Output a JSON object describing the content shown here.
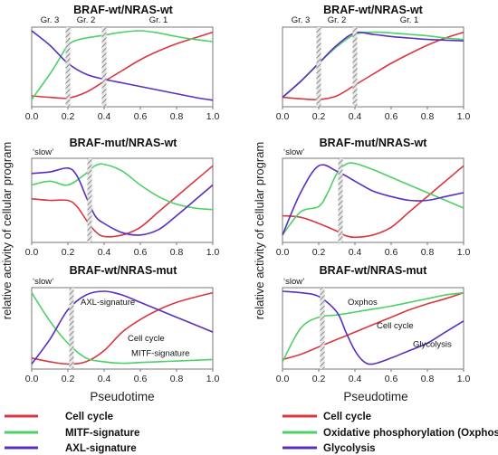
{
  "colors": {
    "cell_cycle": "#d9373f",
    "mitf_oxphos": "#4dd066",
    "axl_glycolysis": "#5a2fbf"
  },
  "ylabel": "relative activity of cellular program",
  "xlabel": "Pseudotime",
  "legends": [
    {
      "items": [
        {
          "label": "Cell cycle",
          "color": "#d9373f"
        },
        {
          "label": "MITF-signature",
          "color": "#4dd066"
        },
        {
          "label": "AXL-signature",
          "color": "#5a2fbf"
        }
      ]
    },
    {
      "items": [
        {
          "label": "Cell cycle",
          "color": "#d9373f"
        },
        {
          "label": "Oxidative phosphorylation (Oxphos)",
          "color": "#4dd066"
        },
        {
          "label": "Glycolysis",
          "color": "#5a2fbf"
        }
      ]
    }
  ],
  "chart_data": [
    {
      "type": "line",
      "title": "BRAF-wt/NRAS-wt",
      "xlabel": "",
      "ylabel": "",
      "xlim": [
        0,
        1
      ],
      "ylim": [
        0,
        1
      ],
      "x_ticks": [
        "0.0",
        "0.2",
        "0.4",
        "0.6",
        "0.8",
        "1.0"
      ],
      "breaks": [
        0.2,
        0.4
      ],
      "groups": [
        "Gr. 3",
        "Gr. 2",
        "Gr. 1"
      ],
      "tag": "",
      "annotations": [],
      "series": [
        {
          "color": "#d9373f",
          "x": [
            0,
            0.1,
            0.2,
            0.3,
            0.4,
            0.5,
            0.6,
            0.7,
            0.8,
            0.9,
            1.0
          ],
          "y": [
            0.1,
            0.08,
            0.07,
            0.15,
            0.3,
            0.45,
            0.6,
            0.72,
            0.82,
            0.9,
            0.98
          ]
        },
        {
          "color": "#4dd066",
          "x": [
            0,
            0.1,
            0.15,
            0.2,
            0.25,
            0.3,
            0.4,
            0.5,
            0.6,
            0.7,
            0.8,
            0.9,
            1.0
          ],
          "y": [
            0.05,
            0.4,
            0.6,
            0.8,
            0.87,
            0.9,
            0.94,
            0.98,
            1.0,
            0.97,
            0.92,
            0.88,
            0.85
          ]
        },
        {
          "color": "#5a2fbf",
          "x": [
            0,
            0.1,
            0.2,
            0.3,
            0.4,
            0.5,
            0.6,
            0.7,
            0.8,
            0.9,
            1.0
          ],
          "y": [
            1.0,
            0.8,
            0.55,
            0.4,
            0.33,
            0.28,
            0.23,
            0.18,
            0.13,
            0.08,
            0.04
          ]
        }
      ]
    },
    {
      "type": "line",
      "title": "BRAF-wt/NRAS-wt",
      "xlabel": "",
      "ylabel": "",
      "xlim": [
        0,
        1
      ],
      "ylim": [
        0,
        1
      ],
      "x_ticks": [
        "0.0",
        "0.2",
        "0.4",
        "0.6",
        "0.8",
        "1.0"
      ],
      "breaks": [
        0.2,
        0.4
      ],
      "groups": [
        "Gr. 3",
        "Gr. 2",
        "Gr. 1"
      ],
      "tag": "",
      "annotations": [],
      "series": [
        {
          "color": "#d9373f",
          "x": [
            0,
            0.1,
            0.2,
            0.3,
            0.4,
            0.5,
            0.6,
            0.7,
            0.8,
            0.9,
            1.0
          ],
          "y": [
            0.08,
            0.06,
            0.05,
            0.1,
            0.25,
            0.4,
            0.55,
            0.68,
            0.8,
            0.9,
            0.98
          ]
        },
        {
          "color": "#4dd066",
          "x": [
            0,
            0.1,
            0.2,
            0.3,
            0.4,
            0.5,
            0.6,
            0.7,
            0.8,
            0.9,
            1.0
          ],
          "y": [
            0.08,
            0.3,
            0.55,
            0.78,
            0.95,
            0.98,
            0.97,
            0.95,
            0.93,
            0.9,
            0.88
          ]
        },
        {
          "color": "#5a2fbf",
          "x": [
            0,
            0.1,
            0.2,
            0.3,
            0.4,
            0.5,
            0.6,
            0.7,
            0.8,
            0.9,
            1.0
          ],
          "y": [
            0.08,
            0.3,
            0.55,
            0.8,
            0.97,
            0.95,
            0.92,
            0.9,
            0.88,
            0.87,
            0.86
          ]
        }
      ]
    },
    {
      "type": "line",
      "title": "BRAF-mut/NRAS-wt",
      "xlabel": "",
      "ylabel": "",
      "xlim": [
        0,
        1
      ],
      "ylim": [
        0,
        1
      ],
      "x_ticks": [
        "0.0",
        "0.2",
        "0.4",
        "0.6",
        "0.8",
        "1.0"
      ],
      "breaks": [
        0.32
      ],
      "groups": [],
      "tag": "‘slow’",
      "annotations": [],
      "series": [
        {
          "color": "#d9373f",
          "x": [
            0,
            0.1,
            0.2,
            0.25,
            0.3,
            0.35,
            0.4,
            0.5,
            0.6,
            0.7,
            0.8,
            0.9,
            1.0
          ],
          "y": [
            0.52,
            0.5,
            0.5,
            0.42,
            0.25,
            0.1,
            0.03,
            0.05,
            0.15,
            0.35,
            0.55,
            0.75,
            0.95
          ]
        },
        {
          "color": "#4dd066",
          "x": [
            0,
            0.1,
            0.2,
            0.3,
            0.35,
            0.4,
            0.5,
            0.6,
            0.7,
            0.8,
            0.9,
            1.0
          ],
          "y": [
            0.7,
            0.75,
            0.7,
            0.85,
            0.95,
            0.97,
            0.88,
            0.7,
            0.55,
            0.45,
            0.4,
            0.38
          ]
        },
        {
          "color": "#5a2fbf",
          "x": [
            0,
            0.1,
            0.2,
            0.25,
            0.3,
            0.35,
            0.4,
            0.5,
            0.6,
            0.7,
            0.8,
            0.9,
            1.0
          ],
          "y": [
            0.85,
            0.87,
            0.92,
            0.82,
            0.55,
            0.3,
            0.2,
            0.08,
            0.05,
            0.12,
            0.3,
            0.5,
            0.7
          ]
        }
      ]
    },
    {
      "type": "line",
      "title": "BRAF-mut/NRAS-wt",
      "xlabel": "",
      "ylabel": "",
      "xlim": [
        0,
        1
      ],
      "ylim": [
        0,
        1
      ],
      "x_ticks": [
        "0.0",
        "0.2",
        "0.4",
        "0.6",
        "0.8",
        "1.0"
      ],
      "breaks": [
        0.32
      ],
      "groups": [],
      "tag": "‘slow’",
      "annotations": [],
      "series": [
        {
          "color": "#d9373f",
          "x": [
            0,
            0.1,
            0.2,
            0.3,
            0.35,
            0.4,
            0.5,
            0.6,
            0.7,
            0.8,
            0.9,
            1.0
          ],
          "y": [
            0.3,
            0.28,
            0.2,
            0.1,
            0.04,
            0.02,
            0.05,
            0.15,
            0.35,
            0.55,
            0.75,
            0.95
          ]
        },
        {
          "color": "#4dd066",
          "x": [
            0,
            0.1,
            0.2,
            0.25,
            0.3,
            0.35,
            0.4,
            0.5,
            0.6,
            0.7,
            0.8,
            0.9,
            1.0
          ],
          "y": [
            0.05,
            0.35,
            0.42,
            0.6,
            0.85,
            0.97,
            0.98,
            0.9,
            0.8,
            0.7,
            0.6,
            0.5,
            0.4
          ]
        },
        {
          "color": "#5a2fbf",
          "x": [
            0,
            0.1,
            0.2,
            0.3,
            0.4,
            0.5,
            0.6,
            0.7,
            0.8,
            0.9,
            1.0
          ],
          "y": [
            0.05,
            0.6,
            0.95,
            0.88,
            0.75,
            0.62,
            0.55,
            0.5,
            0.5,
            0.55,
            0.6
          ]
        }
      ]
    },
    {
      "type": "line",
      "title": "BRAF-wt/NRAS-mut",
      "xlabel": "",
      "ylabel": "",
      "xlim": [
        0,
        1
      ],
      "ylim": [
        0,
        1
      ],
      "x_ticks": [
        "0.0",
        "0.2",
        "0.4",
        "0.6",
        "0.8",
        "1.0"
      ],
      "breaks": [
        0.22
      ],
      "groups": [],
      "tag": "‘slow’",
      "annotations": [
        {
          "text": "AXL-signature",
          "x": 0.27,
          "y": 0.82
        },
        {
          "text": "Cell cycle",
          "x": 0.53,
          "y": 0.33
        },
        {
          "text": "MITF-signature",
          "x": 0.55,
          "y": 0.13
        }
      ],
      "series": [
        {
          "color": "#d9373f",
          "x": [
            0,
            0.1,
            0.2,
            0.3,
            0.4,
            0.5,
            0.6,
            0.7,
            0.8,
            0.9,
            1.0
          ],
          "y": [
            0.1,
            0.05,
            0.02,
            0.05,
            0.2,
            0.45,
            0.62,
            0.75,
            0.85,
            0.92,
            0.98
          ]
        },
        {
          "color": "#4dd066",
          "x": [
            0,
            0.1,
            0.2,
            0.3,
            0.4,
            0.5,
            0.6,
            0.7,
            0.8,
            0.9,
            1.0
          ],
          "y": [
            0.98,
            0.6,
            0.3,
            0.1,
            0.05,
            0.03,
            0.04,
            0.05,
            0.06,
            0.07,
            0.08
          ]
        },
        {
          "color": "#5a2fbf",
          "x": [
            0,
            0.1,
            0.2,
            0.3,
            0.4,
            0.5,
            0.6,
            0.7,
            0.8,
            0.9,
            1.0
          ],
          "y": [
            0.02,
            0.35,
            0.75,
            0.95,
            1.0,
            0.95,
            0.85,
            0.75,
            0.65,
            0.55,
            0.45
          ]
        }
      ]
    },
    {
      "type": "line",
      "title": "BRAF-wt/NRAS-mut",
      "xlabel": "",
      "ylabel": "",
      "xlim": [
        0,
        1
      ],
      "ylim": [
        0,
        1
      ],
      "x_ticks": [
        "0.0",
        "0.2",
        "0.4",
        "0.6",
        "0.8",
        "1.0"
      ],
      "breaks": [
        0.22
      ],
      "groups": [],
      "tag": "‘slow’",
      "annotations": [
        {
          "text": "Oxphos",
          "x": 0.36,
          "y": 0.82
        },
        {
          "text": "Cell cycle",
          "x": 0.52,
          "y": 0.5
        },
        {
          "text": "Glycolysis",
          "x": 0.72,
          "y": 0.25
        }
      ],
      "series": [
        {
          "color": "#d9373f",
          "x": [
            0,
            0.1,
            0.2,
            0.3,
            0.4,
            0.5,
            0.6,
            0.7,
            0.8,
            0.9,
            1.0
          ],
          "y": [
            0.08,
            0.15,
            0.25,
            0.35,
            0.45,
            0.55,
            0.65,
            0.75,
            0.83,
            0.9,
            0.98
          ]
        },
        {
          "color": "#4dd066",
          "x": [
            0,
            0.1,
            0.2,
            0.3,
            0.4,
            0.5,
            0.6,
            0.7,
            0.8,
            0.9,
            1.0
          ],
          "y": [
            0.05,
            0.5,
            0.65,
            0.68,
            0.72,
            0.76,
            0.8,
            0.85,
            0.9,
            0.95,
            0.98
          ]
        },
        {
          "color": "#5a2fbf",
          "x": [
            0,
            0.1,
            0.2,
            0.3,
            0.35,
            0.4,
            0.45,
            0.5,
            0.6,
            0.7,
            0.8,
            0.9,
            1.0
          ],
          "y": [
            1.0,
            0.98,
            0.93,
            0.72,
            0.45,
            0.2,
            0.05,
            0.02,
            0.1,
            0.2,
            0.3,
            0.45,
            0.6
          ]
        }
      ]
    }
  ]
}
